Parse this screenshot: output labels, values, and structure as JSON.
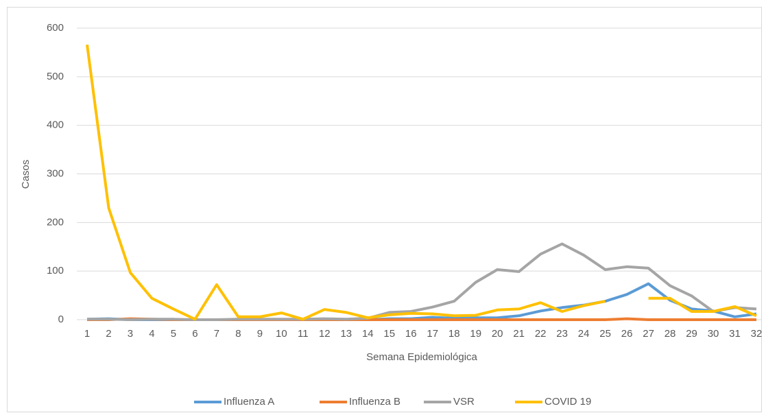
{
  "chart_data": {
    "type": "line",
    "x_label": "Semana Epidemiológica",
    "y_label": "Casos",
    "categories": [
      "1",
      "2",
      "3",
      "4",
      "5",
      "6",
      "7",
      "8",
      "9",
      "10",
      "11",
      "12",
      "13",
      "14",
      "15",
      "16",
      "17",
      "18",
      "19",
      "20",
      "21",
      "22",
      "23",
      "24",
      "25",
      "26",
      "27",
      "28",
      "29",
      "30",
      "31",
      "32"
    ],
    "series": [
      {
        "name": "Influenza A",
        "color": "#5b9bd5",
        "values": [
          1,
          2,
          0,
          0,
          0,
          0,
          0,
          0,
          0,
          0,
          0,
          0,
          0,
          0,
          2,
          2,
          5,
          3,
          4,
          4,
          8,
          18,
          25,
          30,
          38,
          52,
          74,
          40,
          22,
          18,
          6,
          12
        ]
      },
      {
        "name": "Influenza B",
        "color": "#ed7d31",
        "values": [
          0,
          0,
          2,
          1,
          0,
          0,
          0,
          0,
          0,
          0,
          0,
          0,
          0,
          0,
          0,
          0,
          0,
          0,
          0,
          0,
          0,
          0,
          0,
          0,
          0,
          2,
          0,
          0,
          0,
          0,
          0,
          0
        ]
      },
      {
        "name": "VSR",
        "color": "#a5a5a5",
        "values": [
          1,
          1,
          0,
          1,
          1,
          0,
          0,
          1,
          1,
          1,
          1,
          2,
          1,
          3,
          15,
          17,
          26,
          38,
          77,
          103,
          99,
          135,
          156,
          133,
          103,
          109,
          106,
          70,
          49,
          17,
          25,
          22
        ]
      },
      {
        "name": "COVID 19",
        "color": "#ffc000",
        "values": [
          566,
          230,
          97,
          44,
          22,
          1,
          72,
          6,
          6,
          14,
          1,
          21,
          15,
          4,
          10,
          13,
          12,
          8,
          9,
          20,
          22,
          35,
          17,
          29,
          38,
          null,
          44,
          44,
          17,
          17,
          27,
          8
        ]
      }
    ],
    "ylim": [
      0,
      600
    ],
    "yticks": [
      0,
      100,
      200,
      300,
      400,
      500,
      600
    ],
    "grid": true,
    "legend": "bottom"
  }
}
